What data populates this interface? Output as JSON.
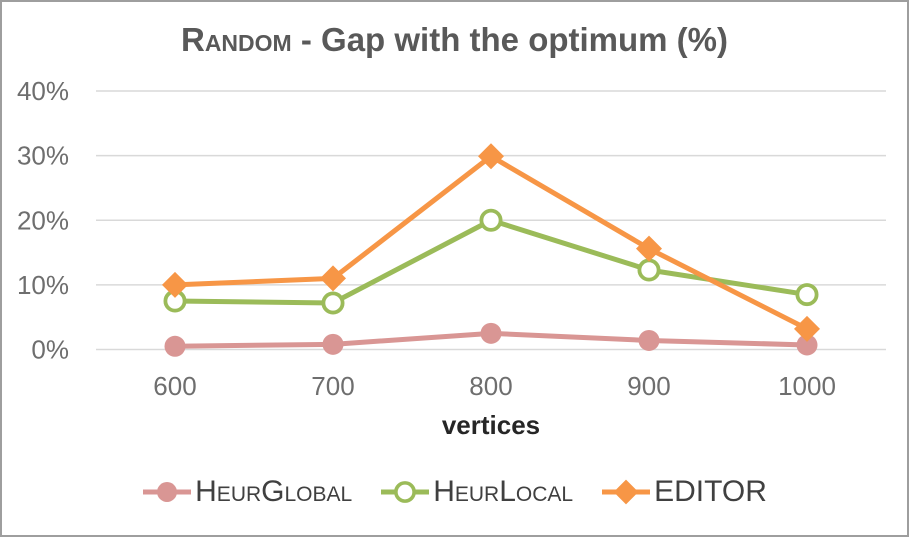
{
  "chart_data": {
    "type": "line",
    "title": {
      "prefix": "Random",
      "rest": " - Gap with the optimum (%)"
    },
    "xlabel": "vertices",
    "categories": [
      "600",
      "700",
      "800",
      "900",
      "1000"
    ],
    "x_numeric": [
      600,
      700,
      800,
      900,
      1000
    ],
    "ylim": [
      0,
      40
    ],
    "y_ticks": [
      {
        "value": 0,
        "label": "0%"
      },
      {
        "value": 10,
        "label": "10%"
      },
      {
        "value": 20,
        "label": "20%"
      },
      {
        "value": 30,
        "label": "30%"
      },
      {
        "value": 40,
        "label": "40%"
      }
    ],
    "grid": true,
    "legend_position": "bottom",
    "series": [
      {
        "name": "HeurGlobal",
        "marker": "circle-filled",
        "color": "#d99694",
        "values": [
          0.5,
          0.8,
          2.5,
          1.4,
          0.7
        ]
      },
      {
        "name": "HeurLocal",
        "marker": "circle-open",
        "color": "#9bbb59",
        "values": [
          7.5,
          7.2,
          20.0,
          12.3,
          8.5
        ]
      },
      {
        "name": "EDITOR",
        "marker": "diamond",
        "color": "#f79646",
        "values": [
          10.0,
          11.0,
          29.9,
          15.6,
          3.2
        ]
      }
    ],
    "colors": {
      "title": "#595959",
      "tick_labels": "#6e6e6e",
      "xlabel": "#262626",
      "legend_text": "#404040",
      "gridline": "#d9d9d9",
      "border": "#9e9e9e",
      "background": "#ffffff"
    }
  }
}
